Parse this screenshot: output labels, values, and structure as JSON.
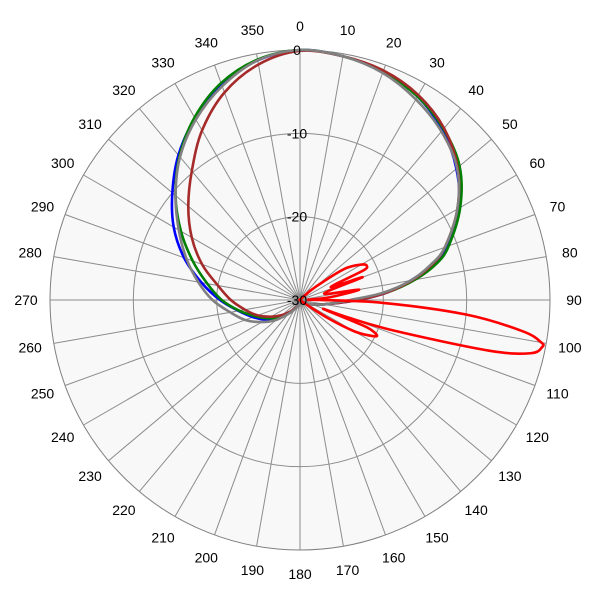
{
  "chart_data": {
    "type": "line",
    "subtype": "polar",
    "title": "",
    "radial_axis": {
      "min": -30,
      "max": 0,
      "ticks": [
        -30,
        -20,
        -10,
        0
      ],
      "tick_labels": [
        "-30",
        "-20",
        "-10",
        "0"
      ]
    },
    "angular_axis": {
      "direction": "clockwise",
      "zero_at": "top",
      "tick_step_deg": 10,
      "tick_labels": [
        "0",
        "10",
        "20",
        "30",
        "40",
        "50",
        "60",
        "70",
        "80",
        "90",
        "100",
        "110",
        "120",
        "130",
        "140",
        "150",
        "160",
        "170",
        "180",
        "190",
        "200",
        "210",
        "220",
        "230",
        "240",
        "250",
        "260",
        "270",
        "280",
        "290",
        "300",
        "310",
        "320",
        "330",
        "340",
        "350"
      ]
    },
    "grid": true,
    "legend": "none",
    "series": [
      {
        "color": "#0000ff",
        "angles": [
          0,
          10,
          20,
          30,
          40,
          50,
          60,
          70,
          75,
          80,
          85,
          90,
          100,
          110,
          120,
          130,
          140,
          150,
          160,
          170,
          180,
          190,
          200,
          210,
          220,
          230,
          240,
          250,
          260,
          270,
          280,
          290,
          300,
          310,
          320,
          330,
          340,
          350
        ],
        "values": [
          0,
          -0.3,
          -0.8,
          -1.8,
          -3.4,
          -5.5,
          -8,
          -11.3,
          -13.5,
          -16.5,
          -19.5,
          -23,
          -27,
          -28.5,
          -29.3,
          -29.7,
          -29.9,
          -30,
          -30,
          -30,
          -29.8,
          -29.6,
          -29.3,
          -28.8,
          -28,
          -26.8,
          -25.3,
          -24,
          -22.5,
          -20.4,
          -18,
          -15.2,
          -12.5,
          -10,
          -7.3,
          -4.8,
          -2.4,
          -0.8
        ]
      },
      {
        "color": "#008000",
        "angles": [
          0,
          10,
          20,
          30,
          40,
          50,
          60,
          70,
          75,
          80,
          85,
          90,
          100,
          110,
          120,
          130,
          140,
          150,
          160,
          170,
          180,
          190,
          200,
          210,
          220,
          230,
          240,
          250,
          260,
          270,
          280,
          290,
          300,
          310,
          320,
          330,
          340,
          350
        ],
        "values": [
          0,
          -0.3,
          -0.9,
          -1.8,
          -3.2,
          -5,
          -7.8,
          -11,
          -13,
          -16,
          -19.5,
          -23.5,
          -27,
          -28.5,
          -29.3,
          -29.7,
          -29.9,
          -30,
          -30,
          -30,
          -29.8,
          -29.6,
          -29.3,
          -28.8,
          -28,
          -26.8,
          -25.6,
          -24.3,
          -22.6,
          -20.6,
          -18.7,
          -16.3,
          -13.5,
          -10.5,
          -7.5,
          -4.7,
          -2.3,
          -0.7
        ]
      },
      {
        "color": "#a52a2a",
        "angles": [
          0,
          10,
          20,
          30,
          40,
          50,
          60,
          70,
          75,
          80,
          85,
          90,
          100,
          110,
          120,
          130,
          140,
          150,
          160,
          170,
          180,
          190,
          200,
          210,
          220,
          230,
          240,
          250,
          260,
          270,
          280,
          290,
          300,
          310,
          320,
          330,
          340,
          350
        ],
        "values": [
          -0.1,
          -0.3,
          -0.7,
          -1.6,
          -3.1,
          -5.3,
          -8.2,
          -11.5,
          -13.6,
          -16.3,
          -19.5,
          -23,
          -27,
          -28.5,
          -29.3,
          -29.7,
          -29.9,
          -30,
          -30,
          -30,
          -29.8,
          -29.6,
          -29.3,
          -28.9,
          -28.2,
          -27.2,
          -26,
          -24.6,
          -23.3,
          -21.7,
          -20,
          -17.5,
          -15,
          -12.5,
          -9.8,
          -6.5,
          -3.5,
          -1.3
        ]
      },
      {
        "color": "#808080",
        "angles": [
          0,
          10,
          20,
          30,
          40,
          50,
          60,
          70,
          75,
          80,
          85,
          90,
          100,
          110,
          120,
          130,
          140,
          150,
          160,
          170,
          180,
          190,
          200,
          210,
          220,
          230,
          240,
          250,
          260,
          270,
          280,
          290,
          300,
          310,
          320,
          330,
          340,
          350
        ],
        "values": [
          0,
          -0.3,
          -1,
          -2.2,
          -3.6,
          -5.4,
          -8.2,
          -11.5,
          -13.8,
          -16.5,
          -20,
          -24,
          -27,
          -28.5,
          -29.3,
          -29.7,
          -29.9,
          -29.9,
          -29.9,
          -29.8,
          -29.7,
          -29.5,
          -29.2,
          -28.7,
          -27.8,
          -26.3,
          -24.7,
          -23,
          -21.5,
          -19.5,
          -17.6,
          -15.5,
          -13.2,
          -10.5,
          -7.6,
          -5,
          -2.7,
          -0.8
        ]
      },
      {
        "color": "#ff0000",
        "angles": [
          0,
          30,
          45,
          50,
          55,
          60,
          63,
          65,
          67,
          70,
          75,
          80,
          85,
          88,
          90,
          92,
          95,
          98,
          100,
          101,
          103,
          105,
          108,
          110,
          111,
          112,
          113,
          115,
          117,
          120,
          123,
          125,
          130,
          140,
          150,
          180,
          210,
          240,
          270,
          300,
          330,
          355
        ],
        "values": [
          -30,
          -30,
          -29.5,
          -27.5,
          -23.5,
          -21.5,
          -21,
          -21.7,
          -26,
          -22,
          -27,
          -22.8,
          -26.5,
          -29,
          -27.5,
          -20,
          -10,
          -3,
          -0.6,
          -0.4,
          -1.6,
          -6.5,
          -18,
          -24,
          -27,
          -22,
          -20.6,
          -19.8,
          -20.6,
          -22.5,
          -26,
          -29,
          -30,
          -30,
          -30,
          -30,
          -30,
          -30,
          -30,
          -30,
          -30,
          -30
        ]
      }
    ]
  }
}
